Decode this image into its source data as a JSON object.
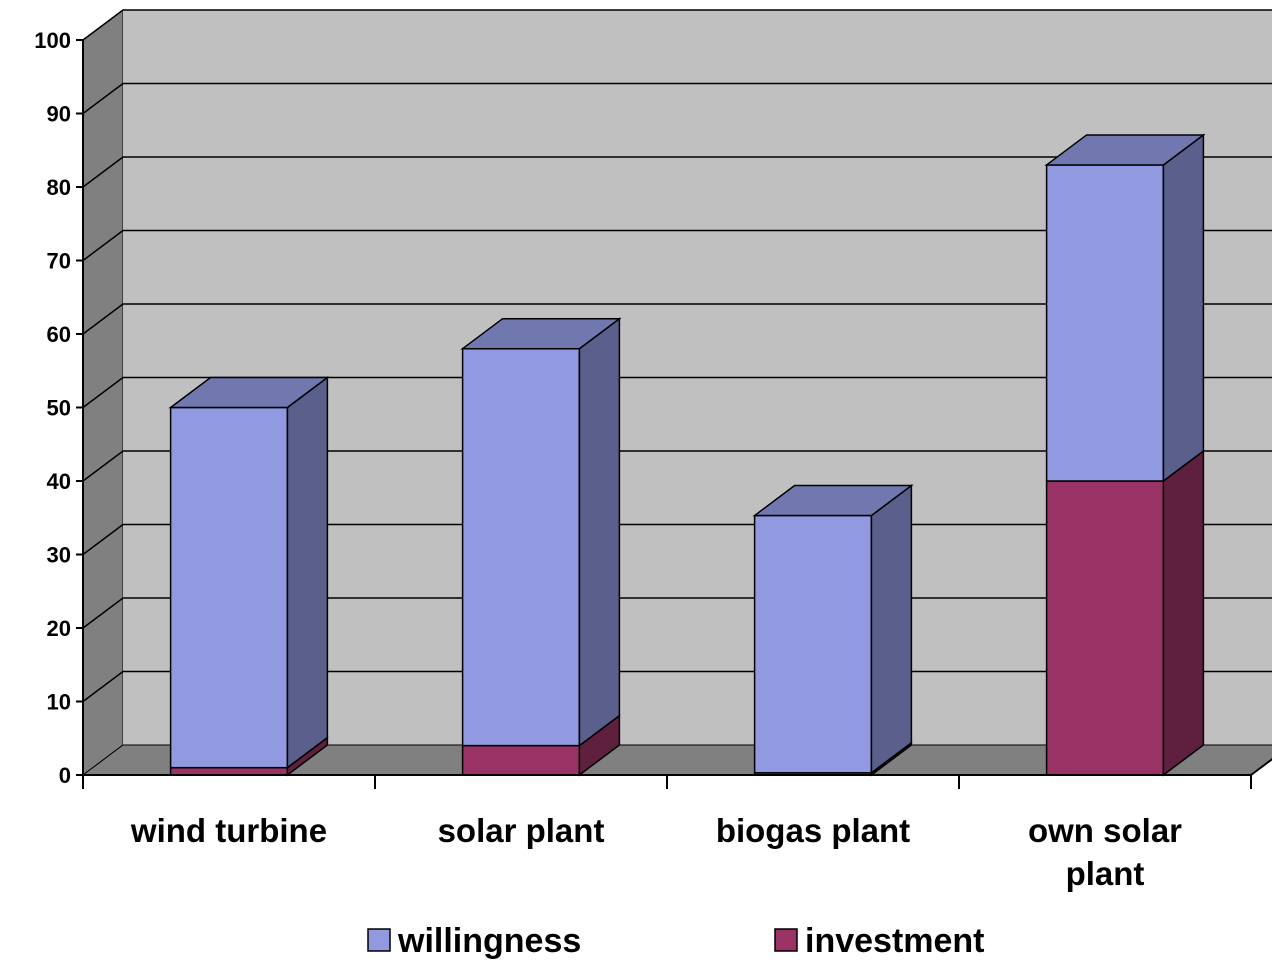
{
  "chart_data": {
    "type": "bar",
    "stacked": true,
    "three_d": true,
    "categories": [
      "wind turbine",
      "solar plant",
      "biogas plant",
      [
        "own solar",
        "plant"
      ]
    ],
    "series": [
      {
        "name": "investment",
        "values": [
          1,
          4,
          0.3,
          40
        ],
        "color": "#993366"
      },
      {
        "name": "willingness",
        "values": [
          49,
          54,
          35,
          43
        ],
        "color": "#9199E0"
      }
    ],
    "ylim": [
      0,
      100
    ],
    "yticks": [
      0,
      10,
      20,
      30,
      40,
      50,
      60,
      70,
      80,
      90,
      100
    ],
    "grid": true,
    "legend": {
      "position": "bottom",
      "items": [
        {
          "label": "willingness",
          "color": "#9199E0"
        },
        {
          "label": "investment",
          "color": "#993366"
        }
      ]
    },
    "wall_color": "#C0C0C0",
    "floor_color": "#808080"
  }
}
